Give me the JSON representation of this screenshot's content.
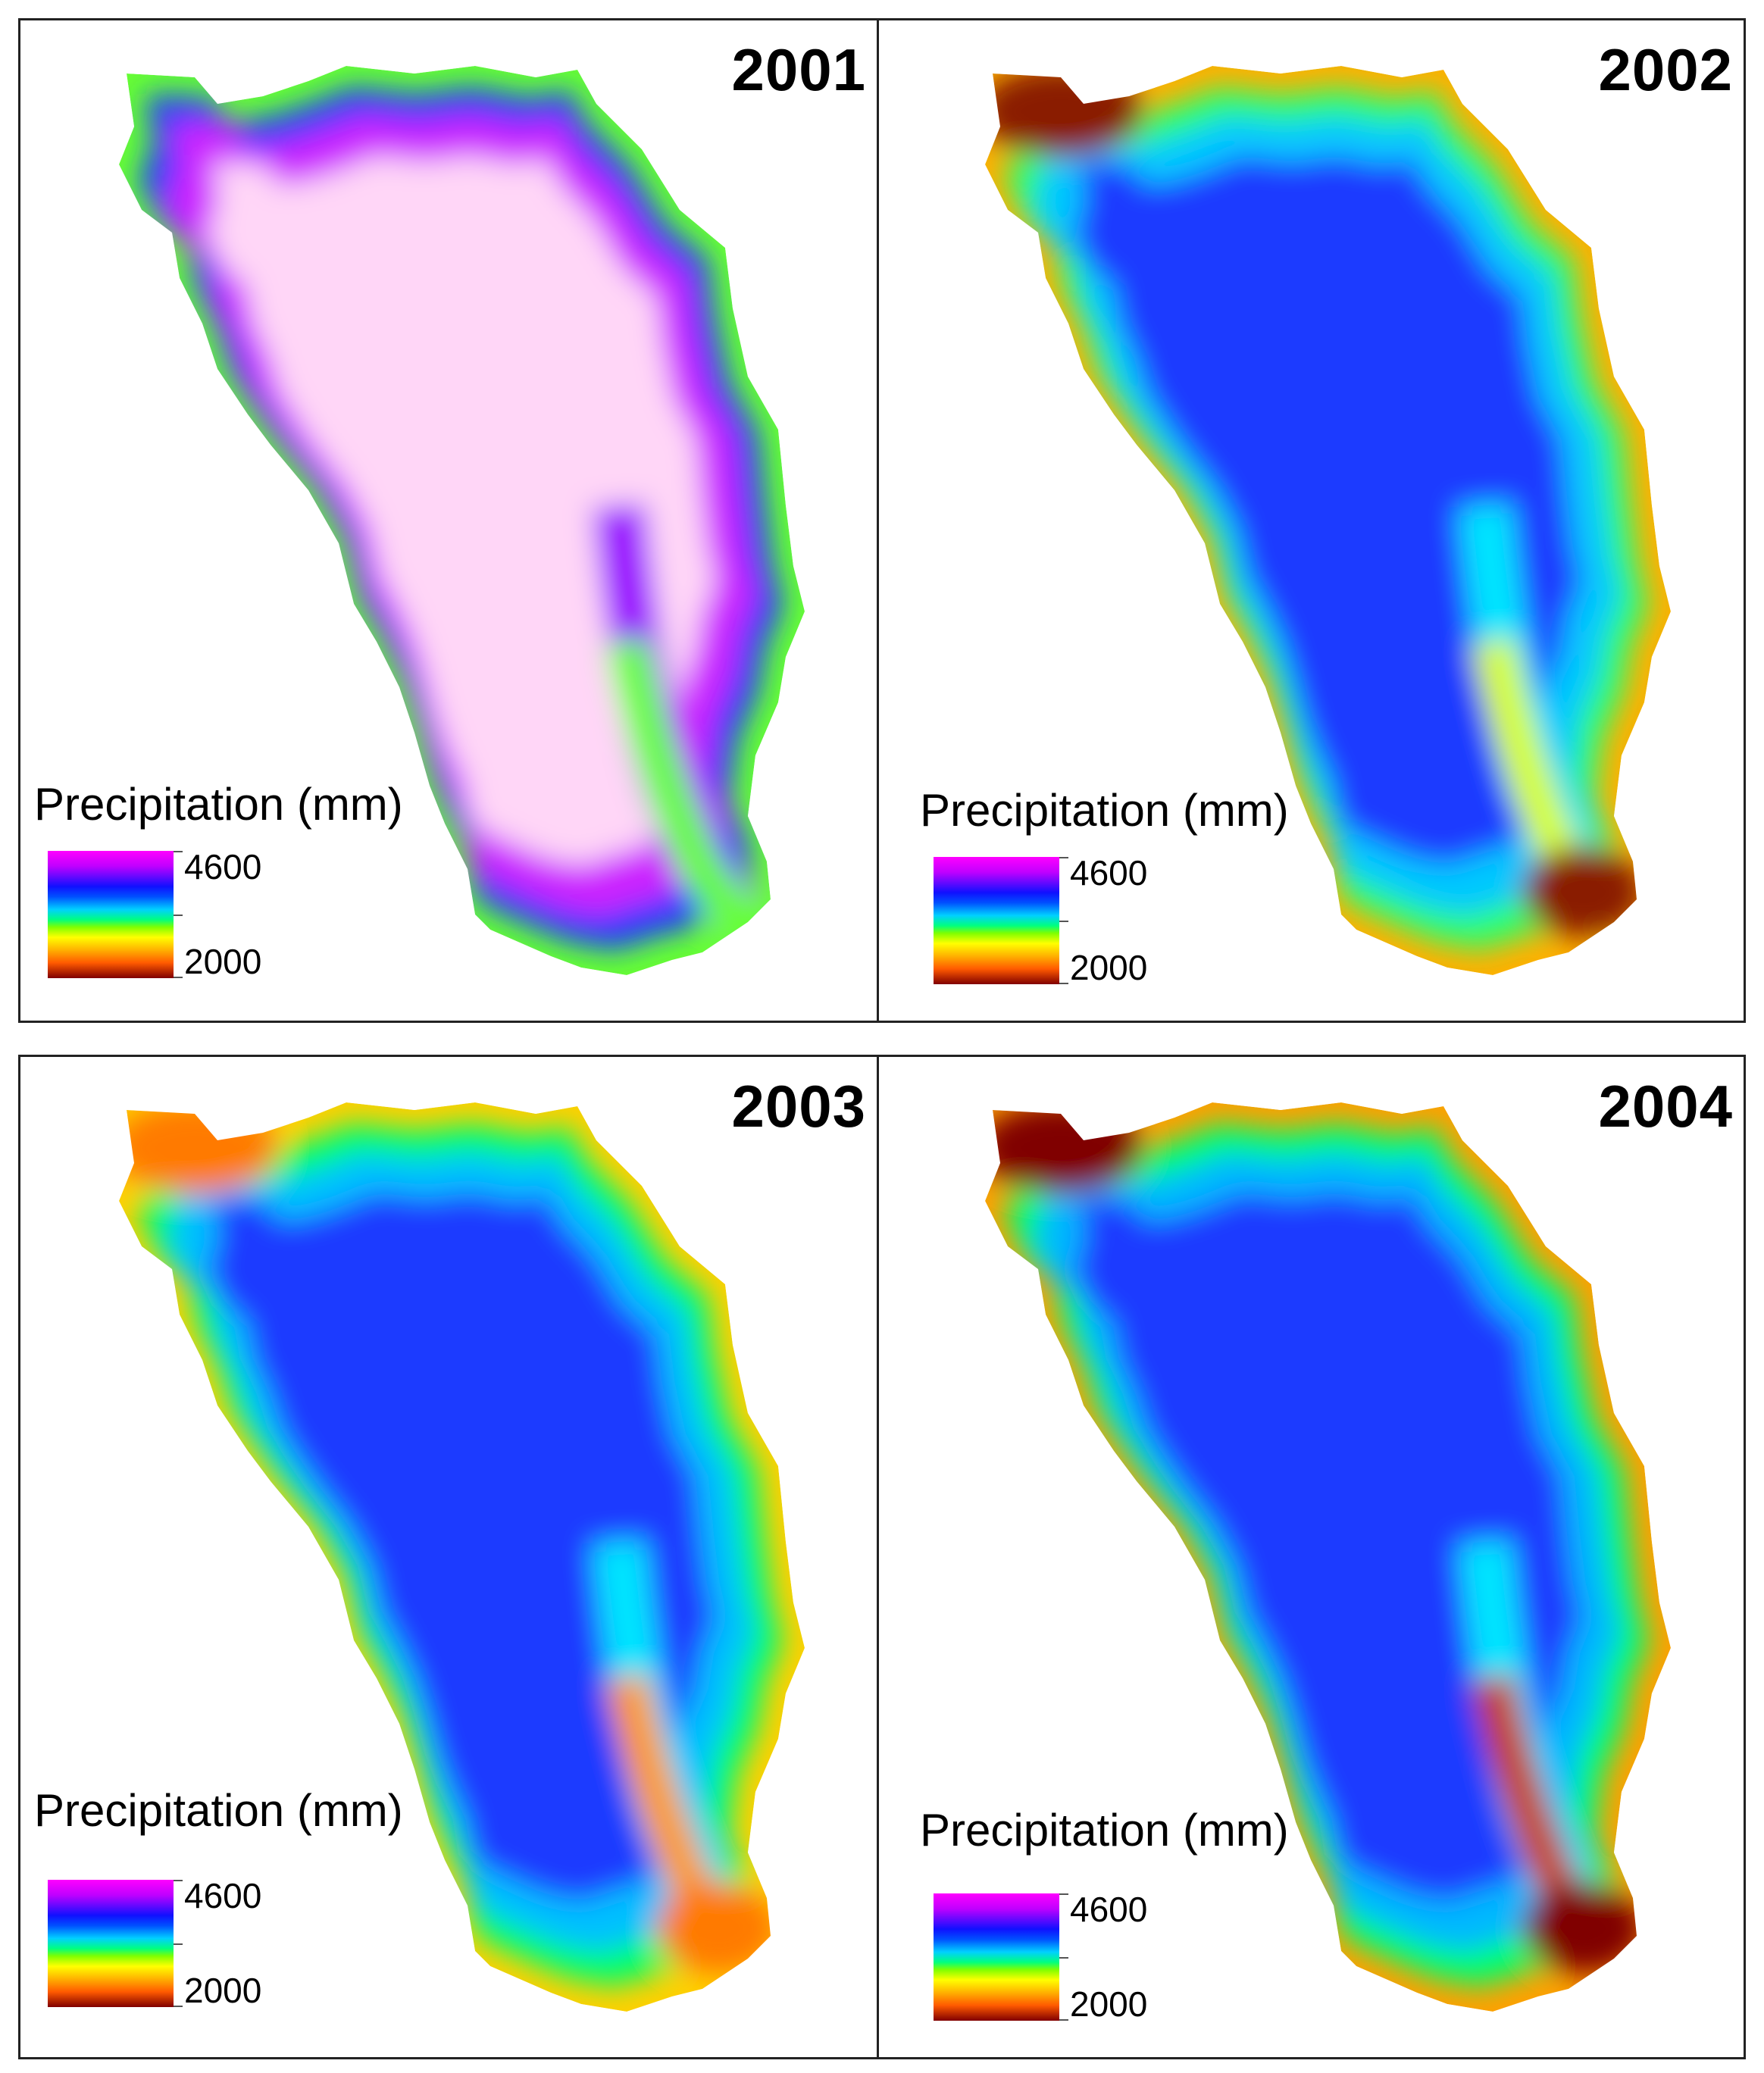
{
  "legend": {
    "title": "Precipitation (mm)",
    "max_label": "4600",
    "min_label": "2000",
    "colors": [
      "#ff00ff",
      "#1010ff",
      "#00ffa0",
      "#ffff00",
      "#ff8000",
      "#800000"
    ]
  },
  "panels": [
    {
      "year": "2001",
      "palette": {
        "edge": "#66ff33",
        "mid1": "#1a3dff",
        "mid2": "#cc22ff",
        "core": "#ffd6f7",
        "ridge": "#9a00ff"
      }
    },
    {
      "year": "2002",
      "palette": {
        "edge": "#ffb000",
        "mid1": "#2dff6a",
        "mid2": "#00c8ff",
        "core": "#1f3bff",
        "ridge": "#00e5ff",
        "outlet": "#d9ff00",
        "hot": "#8a1a00"
      }
    },
    {
      "year": "2003",
      "palette": {
        "edge": "#ffd000",
        "mid1": "#00ff6a",
        "mid2": "#00c0ff",
        "core": "#1f3bff",
        "ridge": "#00e5ff",
        "outlet": "#ff9a00",
        "hot": "#ff7a00"
      }
    },
    {
      "year": "2004",
      "palette": {
        "edge": "#ffa000",
        "mid1": "#00ff6a",
        "mid2": "#00b8ff",
        "core": "#1f3bff",
        "ridge": "#00e5ff",
        "outlet": "#c84000",
        "hot": "#800000"
      }
    }
  ]
}
